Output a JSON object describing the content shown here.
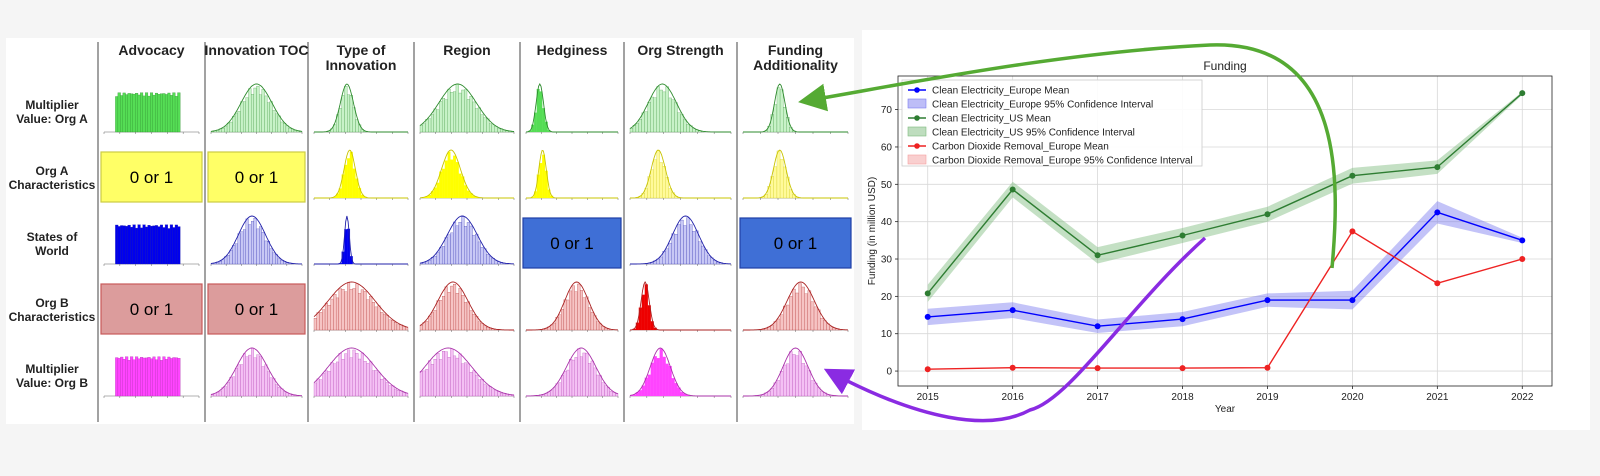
{
  "grid": {
    "columns": [
      "Advocacy",
      "Innovation TOC",
      "Type of|Innovation",
      "Region",
      "Hedginess",
      "Org Strength",
      "Funding|Additionality"
    ],
    "rows": [
      "Multiplier|Value: Org A",
      "Org A|Characteristics",
      "States of|World",
      "Org B|Characteristics",
      "Multiplier|Value: Org B"
    ],
    "binary_label": "0 or 1",
    "colors": {
      "green_fill": "#55dd55",
      "green_light": "#c8f2c8",
      "green_line": "#2e8b2e",
      "yellow_fill": "#ffff00",
      "yellow_box": "#ffff66",
      "yellow_border": "#cccc44",
      "blue_fill": "#0000ee",
      "blue_light": "#c8c8f5",
      "blue_line": "#2222aa",
      "blue_box": "#3f6fd6",
      "blue_box_border": "#1f3fa6",
      "red_fill": "#ee0000",
      "red_light": "#f6c4c4",
      "red_line": "#aa2222",
      "red_box": "#dc9c9c",
      "red_box_border": "#c85a5a",
      "magenta_fill": "#ff44ff",
      "magenta_light": "#f4c0f4",
      "magenta_line": "#aa33aa"
    },
    "cells": [
      [
        {
          "kind": "uniform",
          "theme": "green",
          "dense": true
        },
        {
          "kind": "dist",
          "theme": "green",
          "mu": 0.5,
          "sigma": 0.17,
          "dense": false
        },
        {
          "kind": "dist",
          "theme": "green",
          "mu": 0.35,
          "sigma": 0.07,
          "dense": false
        },
        {
          "kind": "dist",
          "theme": "green",
          "mu": 0.4,
          "sigma": 0.2,
          "dense": false
        },
        {
          "kind": "dist",
          "theme": "green",
          "mu": 0.15,
          "sigma": 0.04,
          "dense": true
        },
        {
          "kind": "dist",
          "theme": "green",
          "mu": 0.32,
          "sigma": 0.14,
          "dense": false
        },
        {
          "kind": "dist",
          "theme": "green",
          "mu": 0.35,
          "sigma": 0.05,
          "dense": false
        }
      ],
      [
        {
          "kind": "binary",
          "theme": "yellow"
        },
        {
          "kind": "binary",
          "theme": "yellow"
        },
        {
          "kind": "dist",
          "theme": "yellow",
          "mu": 0.38,
          "sigma": 0.06,
          "dense": true
        },
        {
          "kind": "dist",
          "theme": "yellow",
          "mu": 0.33,
          "sigma": 0.1,
          "dense": true
        },
        {
          "kind": "dist",
          "theme": "yellow",
          "mu": 0.18,
          "sigma": 0.04,
          "dense": true
        },
        {
          "kind": "dist",
          "theme": "yellow",
          "mu": 0.28,
          "sigma": 0.07,
          "dense": false
        },
        {
          "kind": "dist",
          "theme": "yellow",
          "mu": 0.35,
          "sigma": 0.06,
          "dense": false
        }
      ],
      [
        {
          "kind": "uniform",
          "theme": "blue",
          "dense": true
        },
        {
          "kind": "dist",
          "theme": "blue",
          "mu": 0.45,
          "sigma": 0.15,
          "dense": false
        },
        {
          "kind": "dist",
          "theme": "blue",
          "mu": 0.35,
          "sigma": 0.025,
          "dense": true
        },
        {
          "kind": "dist",
          "theme": "blue",
          "mu": 0.45,
          "sigma": 0.16,
          "dense": false
        },
        {
          "kind": "binary",
          "theme": "blue"
        },
        {
          "kind": "dist",
          "theme": "blue",
          "mu": 0.55,
          "sigma": 0.13,
          "dense": false
        },
        {
          "kind": "binary",
          "theme": "blue"
        }
      ],
      [
        {
          "kind": "binary",
          "theme": "red"
        },
        {
          "kind": "binary",
          "theme": "red"
        },
        {
          "kind": "dist",
          "theme": "red",
          "mu": 0.4,
          "sigma": 0.25,
          "dense": false
        },
        {
          "kind": "dist",
          "theme": "red",
          "mu": 0.35,
          "sigma": 0.16,
          "dense": false
        },
        {
          "kind": "dist",
          "theme": "red",
          "mu": 0.55,
          "sigma": 0.13,
          "dense": false
        },
        {
          "kind": "dist",
          "theme": "red",
          "mu": 0.15,
          "sigma": 0.04,
          "dense": true
        },
        {
          "kind": "dist",
          "theme": "red",
          "mu": 0.55,
          "sigma": 0.13,
          "dense": false
        }
      ],
      [
        {
          "kind": "uniform",
          "theme": "magenta",
          "dense": true
        },
        {
          "kind": "dist",
          "theme": "magenta",
          "mu": 0.45,
          "sigma": 0.17,
          "dense": false
        },
        {
          "kind": "dist",
          "theme": "magenta",
          "mu": 0.4,
          "sigma": 0.25,
          "dense": false
        },
        {
          "kind": "dist",
          "theme": "magenta",
          "mu": 0.3,
          "sigma": 0.25,
          "dense": false
        },
        {
          "kind": "dist",
          "theme": "magenta",
          "mu": 0.6,
          "sigma": 0.16,
          "dense": false
        },
        {
          "kind": "dist",
          "theme": "magenta",
          "mu": 0.3,
          "sigma": 0.1,
          "dense": true
        },
        {
          "kind": "dist",
          "theme": "magenta",
          "mu": 0.5,
          "sigma": 0.12,
          "dense": false
        }
      ]
    ]
  },
  "chart_data": {
    "type": "line",
    "title": "Funding",
    "xlabel": "Year",
    "ylabel": "Funding (in million USD)",
    "x": [
      2015,
      2016,
      2017,
      2018,
      2019,
      2020,
      2021,
      2022
    ],
    "xlim": [
      2014.65,
      2022.35
    ],
    "ylim": [
      -4,
      79
    ],
    "yticks": [
      0,
      10,
      20,
      30,
      40,
      50,
      60,
      70
    ],
    "grid": true,
    "legend_position": "upper-left",
    "series": [
      {
        "name": "Clean Electricity_Europe",
        "mean_label": "Clean Electricity_Europe Mean",
        "ci_label": "Clean Electricity_Europe 95% Confidence Interval",
        "values": [
          14.5,
          16.3,
          12.0,
          13.9,
          19.0,
          19.0,
          42.5,
          35.0
        ],
        "ci_lower": [
          12.3,
          14.2,
          10.2,
          12.0,
          17.2,
          16.5,
          39.5,
          34.3
        ],
        "ci_upper": [
          16.7,
          18.4,
          13.8,
          15.8,
          20.8,
          21.5,
          45.5,
          35.7
        ],
        "color": "#0000ff",
        "ci_color": "#7b7bf0"
      },
      {
        "name": "Clean Electricity_US",
        "mean_label": "Clean Electricity_US Mean",
        "ci_label": "Clean Electricity_US 95% Confidence Interval",
        "values": [
          20.8,
          48.6,
          31.0,
          36.3,
          42.0,
          52.3,
          54.6,
          74.4
        ],
        "ci_lower": [
          18.5,
          46.5,
          28.8,
          34.3,
          40.0,
          50.2,
          52.8,
          74.0
        ],
        "ci_upper": [
          23.1,
          50.7,
          33.2,
          38.3,
          44.0,
          54.4,
          56.4,
          74.8
        ],
        "color": "#2e7d32",
        "ci_color": "#7dbb7d"
      },
      {
        "name": "Carbon Dioxide Removal_Europe",
        "mean_label": "Carbon Dioxide Removal_Europe Mean",
        "ci_label": "Carbon Dioxide Removal_Europe 95% Confidence Interval",
        "values": [
          0.5,
          0.9,
          0.8,
          0.8,
          0.9,
          37.4,
          23.5,
          30.0
        ],
        "ci_lower": [
          0.4,
          0.8,
          0.7,
          0.7,
          0.8,
          37.2,
          23.3,
          29.8
        ],
        "ci_upper": [
          0.6,
          1.0,
          0.9,
          0.9,
          1.0,
          37.6,
          23.7,
          30.2
        ],
        "color": "#ee2222",
        "ci_color": "#f4a0a0"
      }
    ]
  },
  "annotations": {
    "green_arrow_color": "#55aa33",
    "purple_arrow_color": "#8a2be2"
  }
}
